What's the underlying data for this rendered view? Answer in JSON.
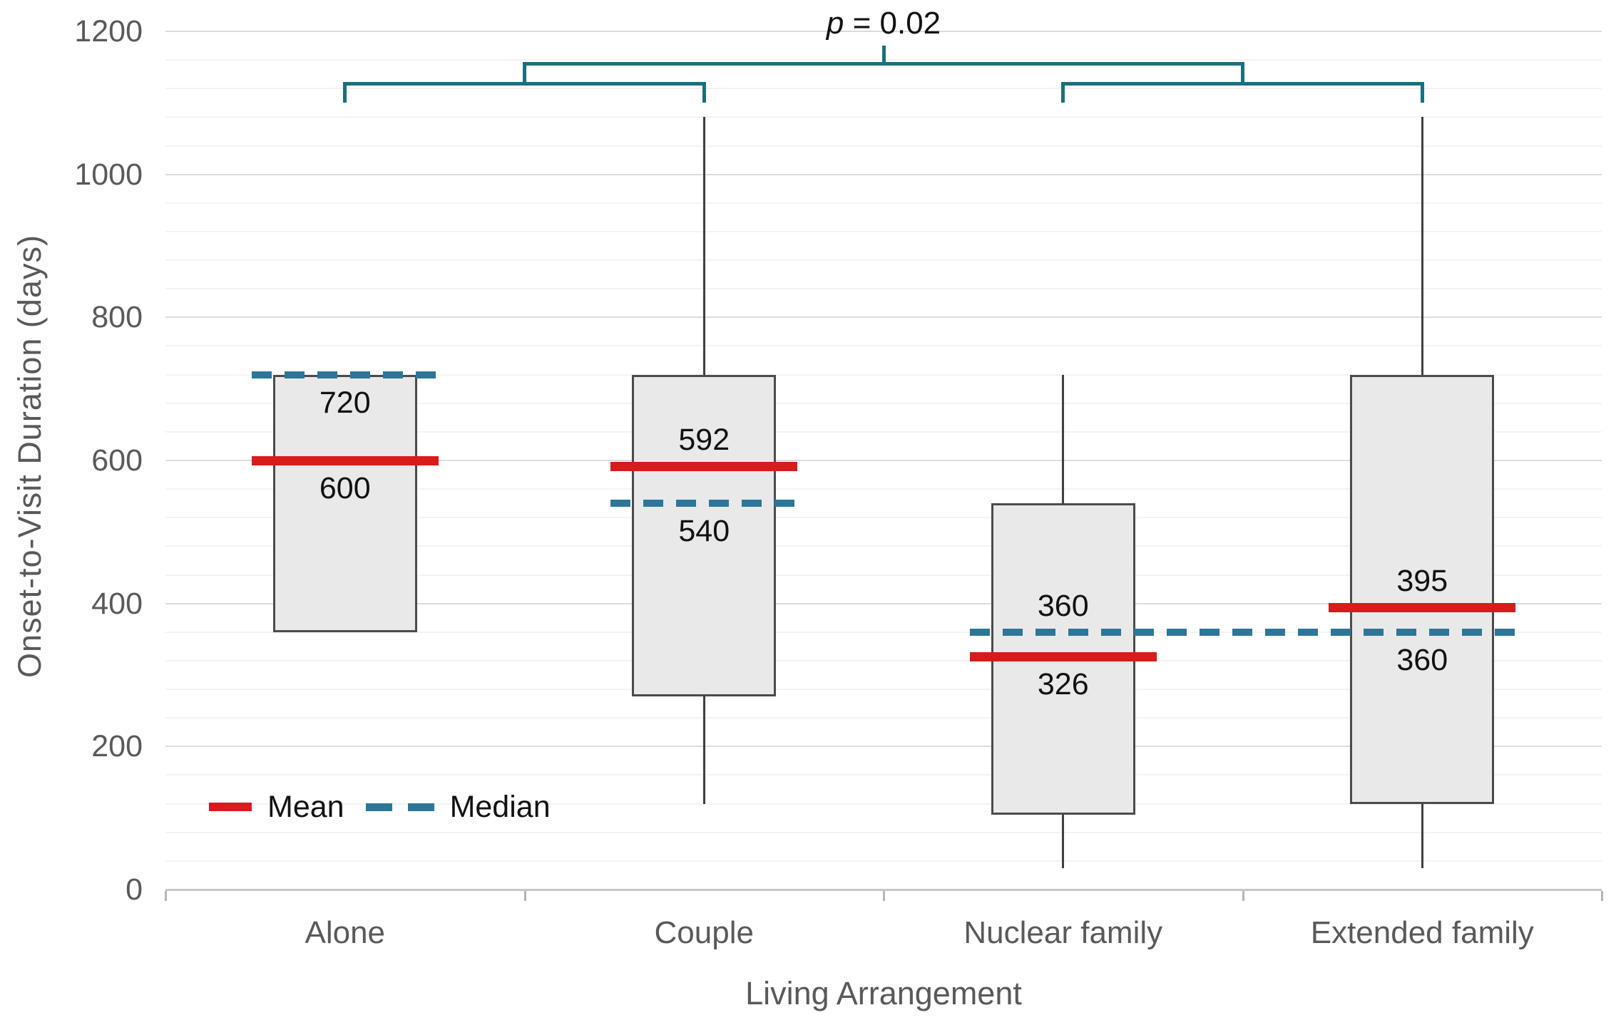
{
  "chart_data": {
    "type": "boxplot",
    "title": "",
    "xlabel": "Living Arrangement",
    "ylabel": "Onset-to-Visit Duration (days)",
    "ylim": [
      0,
      1200
    ],
    "ytick_step": 200,
    "ytick_minor": 40,
    "yticks": [
      "0",
      "200",
      "400",
      "600",
      "800",
      "1000",
      "1200"
    ],
    "grid": "major-and-minor-horizontal",
    "legend": {
      "mean": "Mean",
      "median": "Median",
      "position": "bottom-left-inside"
    },
    "categories": [
      "Alone",
      "Couple",
      "Nuclear family",
      "Extended family"
    ],
    "groups": [
      {
        "label": "Alone",
        "q1": 360,
        "median": 720,
        "q3": 720,
        "whisker_low": 360,
        "whisker_high": 720,
        "mean": 600,
        "median_label": "720",
        "median_label_side": "below",
        "mean_label": "600",
        "mean_label_side": "below",
        "median_line": "own"
      },
      {
        "label": "Couple",
        "q1": 270,
        "median": 540,
        "q3": 720,
        "whisker_low": 120,
        "whisker_high": 1080,
        "mean": 592,
        "median_label": "540",
        "median_label_side": "below",
        "mean_label": "592",
        "mean_label_side": "above",
        "median_line": "own"
      },
      {
        "label": "Nuclear family",
        "q1": 105,
        "median": 360,
        "q3": 540,
        "whisker_low": 30,
        "whisker_high": 720,
        "mean": 326,
        "median_label": "360",
        "median_label_side": "above",
        "mean_label": "326",
        "mean_label_side": "below",
        "median_line": "merge_with_next"
      },
      {
        "label": "Extended family",
        "q1": 120,
        "median": 360,
        "q3": 720,
        "whisker_low": 30,
        "whisker_high": 1080,
        "mean": 395,
        "median_label": "360",
        "median_label_side": "below",
        "mean_label": "395",
        "mean_label_side": "above",
        "median_line": "merged"
      }
    ],
    "annotation": {
      "symbol": "p",
      "rest": " = 0.02",
      "text": "p = 0.02",
      "pairs": [
        [
          0,
          1
        ],
        [
          2,
          3
        ]
      ]
    },
    "colors": {
      "mean": "#d81b1b",
      "median": "#2d7699",
      "bracket": "#19707f",
      "box_fill": "#e9e9e9",
      "box_border": "#4b4b4b",
      "whisker": "#3f3f3f",
      "grid_major": "#dcdcdc",
      "grid_minor": "#f3f3f3",
      "axis_line": "#c6c6c6",
      "axis_tick": "#b5b5b5",
      "axis_text": "#595959",
      "value_text": "#111111"
    }
  }
}
